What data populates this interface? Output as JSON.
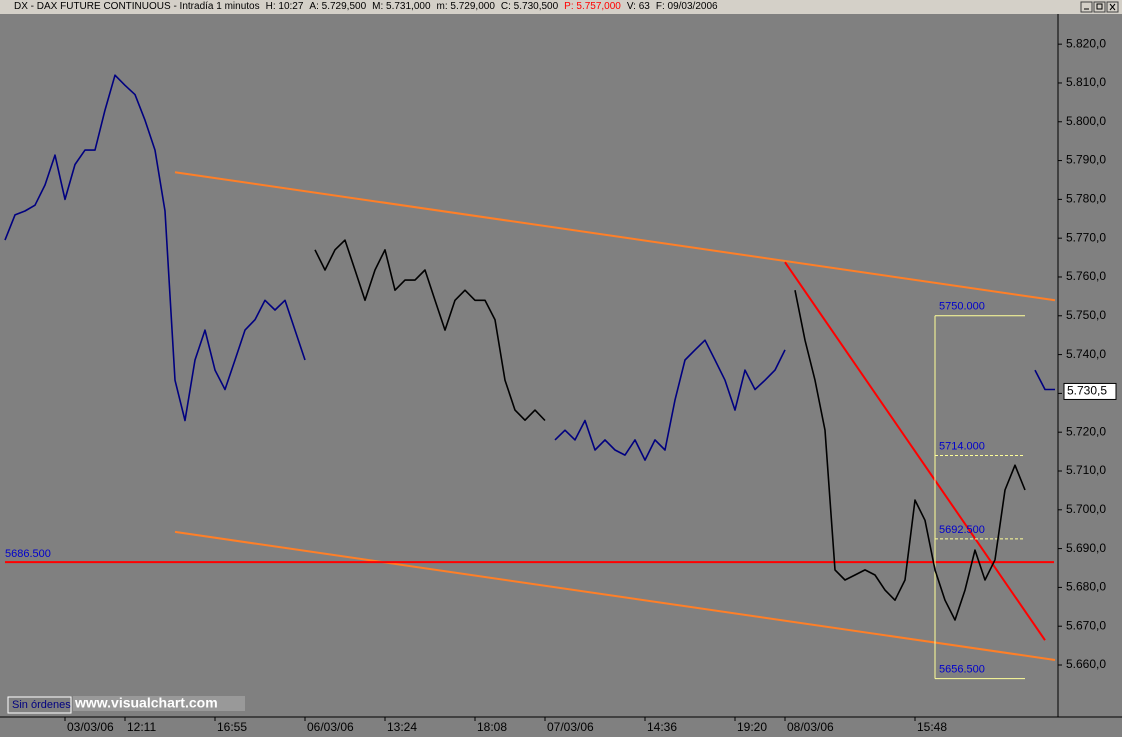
{
  "chart_data": {
    "type": "line",
    "header": {
      "title": "DX - DAX FUTURE CONTINUOUS - Intradía 1 minutos",
      "stats": [
        {
          "text": "H: 10:27",
          "color": "#000000"
        },
        {
          "text": "A: 5.729,500",
          "color": "#000000"
        },
        {
          "text": "M: 5.731,000",
          "color": "#000000"
        },
        {
          "text": "m: 5.729,000",
          "color": "#000000"
        },
        {
          "text": "C: 5.730,500",
          "color": "#000000"
        },
        {
          "text": "P: 5.757,000",
          "color": "#ff0000"
        },
        {
          "text": "V: 63",
          "color": "#000000"
        },
        {
          "text": "F: 09/03/2006",
          "color": "#000000"
        }
      ]
    },
    "categories": [
      null,
      null,
      null,
      null,
      null,
      null,
      "03/03/06",
      null,
      null,
      null,
      null,
      null,
      "12:11",
      null,
      null,
      null,
      null,
      null,
      null,
      null,
      null,
      "16:55",
      null,
      null,
      null,
      null,
      null,
      null,
      null,
      null,
      "06/03/06",
      null,
      null,
      null,
      null,
      null,
      null,
      null,
      "13:24",
      null,
      null,
      null,
      null,
      null,
      null,
      null,
      null,
      "18:08",
      null,
      null,
      null,
      null,
      null,
      null,
      "07/03/06",
      null,
      null,
      null,
      null,
      null,
      null,
      null,
      null,
      null,
      "14:36",
      null,
      null,
      null,
      null,
      null,
      null,
      null,
      null,
      "19:20",
      null,
      null,
      null,
      null,
      "08/03/06",
      null,
      null,
      null,
      null,
      null,
      null,
      null,
      null,
      null,
      null,
      null,
      null,
      "15:48",
      null,
      null,
      null,
      null,
      null,
      null,
      null,
      null,
      null,
      null,
      null,
      null,
      null,
      null
    ],
    "series": [
      {
        "color": "#000080",
        "values": [
          5769.5,
          5776,
          5777,
          5778.5,
          5783.7,
          5791.4,
          5780,
          5789,
          5792.7,
          5792.7,
          5803,
          5812,
          5809.4,
          5807,
          5800.4,
          5792.7,
          5777,
          5733.4,
          5723,
          5738.6,
          5746.3,
          5736,
          5731,
          5738.6,
          5746.3,
          5749,
          5754,
          5751.5,
          5754,
          5746.3,
          5738.6,
          null,
          null,
          null,
          null,
          null,
          null,
          null,
          null,
          null,
          null,
          null,
          null,
          null,
          null,
          null,
          null,
          null,
          null,
          null,
          null,
          null,
          null,
          null,
          null,
          5718,
          5720.5,
          5718,
          5723,
          5715.4,
          5718,
          5715.4,
          5714.1,
          5718,
          5712.8,
          5718,
          5715.4,
          5728.3,
          5738.6,
          5741.2,
          5743.7,
          5738.6,
          5733.4,
          5725.7,
          5736,
          5731,
          5733.4,
          5736,
          5741.2,
          null,
          null,
          null,
          null,
          null,
          null,
          null,
          null,
          null,
          null,
          null,
          null,
          null,
          null,
          null,
          null,
          null,
          null,
          null,
          null,
          null,
          null,
          null,
          null,
          5736,
          5731,
          5731
        ]
      },
      {
        "color": "#000000",
        "values": [
          null,
          null,
          null,
          null,
          null,
          null,
          null,
          null,
          null,
          null,
          null,
          null,
          null,
          null,
          null,
          null,
          null,
          null,
          null,
          null,
          null,
          null,
          null,
          null,
          null,
          null,
          null,
          null,
          null,
          null,
          null,
          5767,
          5761.8,
          5767,
          5769.5,
          5761.8,
          5754,
          5761.8,
          5767,
          5756.6,
          5759.2,
          5759.2,
          5761.8,
          5754,
          5746.3,
          5754,
          5756.6,
          5754,
          5754,
          5749,
          5733.4,
          5725.7,
          5723.1,
          5725.7,
          5723,
          null,
          null,
          null,
          null,
          null,
          null,
          null,
          null,
          null,
          null,
          null,
          null,
          null,
          null,
          null,
          null,
          null,
          null,
          null,
          null,
          null,
          null,
          null,
          null,
          5756.6,
          5743.7,
          5733.4,
          5720.5,
          5684.5,
          5681.9,
          5683.2,
          5684.5,
          5683.2,
          5679.3,
          5676.7,
          5681.9,
          5702.5,
          5697.3,
          5684.5,
          5676.7,
          5671.6,
          5679.3,
          5689.6,
          5681.9,
          5687.1,
          5705.1,
          5711.5,
          5705.1,
          null,
          null,
          null
        ]
      }
    ],
    "ylim": [
      5646.6,
      5827.0
    ],
    "yticks": [
      {
        "value": 5820,
        "label": "5.820,0"
      },
      {
        "value": 5810,
        "label": "5.810,0"
      },
      {
        "value": 5800,
        "label": "5.800,0"
      },
      {
        "value": 5790,
        "label": "5.790,0"
      },
      {
        "value": 5780,
        "label": "5.780,0"
      },
      {
        "value": 5770,
        "label": "5.770,0"
      },
      {
        "value": 5760,
        "label": "5.760,0"
      },
      {
        "value": 5750,
        "label": "5.750,0"
      },
      {
        "value": 5740,
        "label": "5.740,0"
      },
      {
        "value": 5730,
        "label": "5.730,0"
      },
      {
        "value": 5720,
        "label": "5.720,0"
      },
      {
        "value": 5710,
        "label": "5.710,0"
      },
      {
        "value": 5700,
        "label": "5.700,0"
      },
      {
        "value": 5690,
        "label": "5.690,0"
      },
      {
        "value": 5680,
        "label": "5.680,0"
      },
      {
        "value": 5670,
        "label": "5.670,0"
      },
      {
        "value": 5660,
        "label": "5.660,0"
      }
    ],
    "grid": false,
    "annotations": {
      "lines": [
        {
          "color": "#ff7f27",
          "start": [
            17,
            5787.0
          ],
          "end": [
            105,
            5754.0
          ]
        },
        {
          "color": "#ff7f27",
          "start": [
            17,
            5694.3
          ],
          "end": [
            105,
            5661.3
          ]
        },
        {
          "color": "#ff0000",
          "start": [
            78,
            5763.8
          ],
          "end": [
            104,
            5666.4
          ]
        }
      ],
      "hline": {
        "value": 5686.5,
        "label": "5686.500",
        "color": "#ff0000"
      },
      "levels": {
        "x_range": [
          93,
          102
        ],
        "color": "#ffff99",
        "items": [
          {
            "value": 5750,
            "label": "5750.000"
          },
          {
            "value": 5714,
            "label": "5714.000"
          },
          {
            "value": 5692.5,
            "label": "5692.500"
          },
          {
            "value": 5656.5,
            "label": "5656.500"
          }
        ]
      },
      "last_price": {
        "value": 5730.5,
        "label": "5.730,5"
      }
    },
    "status": "Sin órdenes",
    "watermark": "www.visualchart.com"
  }
}
